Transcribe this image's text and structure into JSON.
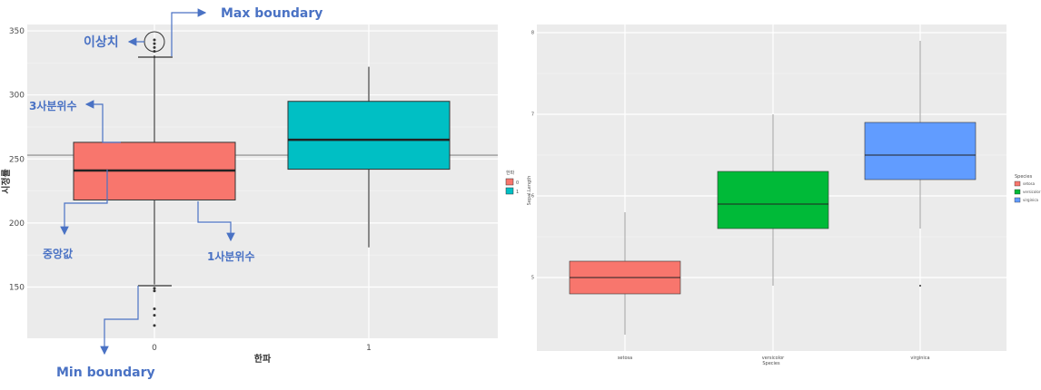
{
  "chart_data": [
    {
      "type": "box",
      "xlabel": "한파",
      "ylabel": "시정률",
      "ylim": [
        110,
        355
      ],
      "yticks": [
        150,
        200,
        250,
        300,
        350
      ],
      "hline": 253,
      "categories": [
        "0",
        "1"
      ],
      "boxes": [
        {
          "category": "0",
          "min": 152,
          "q1": 218,
          "median": 241,
          "q3": 263,
          "max": 331,
          "outliers": [
            334,
            337,
            340,
            343,
            147,
            149,
            128,
            133,
            120
          ],
          "color": "#f8766d"
        },
        {
          "category": "1",
          "min": 181,
          "q1": 242,
          "median": 265,
          "q3": 295,
          "max": 322,
          "outliers": [],
          "color": "#00bfc4"
        }
      ],
      "legend": {
        "title": "한파",
        "items": [
          "0",
          "1"
        ]
      },
      "annotations": {
        "max": "Max boundary",
        "outlier": "이상치",
        "q3": "3사분위수",
        "median": "중앙값",
        "q1": "1사분위수",
        "min": "Min boundary"
      }
    },
    {
      "type": "box",
      "xlabel": "Species",
      "ylabel": "Sepal.Length",
      "ylim": [
        4.1,
        8.1
      ],
      "yticks": [
        5,
        6,
        7,
        8
      ],
      "yticklabels": [
        "5",
        "6",
        "7",
        "8"
      ],
      "categories": [
        "setosa",
        "versicolor",
        "virginica"
      ],
      "boxes": [
        {
          "category": "setosa",
          "min": 4.3,
          "q1": 4.8,
          "median": 5.0,
          "q3": 5.2,
          "max": 5.8,
          "outliers": [],
          "color": "#f8766d"
        },
        {
          "category": "versicolor",
          "min": 4.9,
          "q1": 5.6,
          "median": 5.9,
          "q3": 6.3,
          "max": 7.0,
          "outliers": [],
          "color": "#00ba38"
        },
        {
          "category": "virginica",
          "min": 5.6,
          "q1": 6.2,
          "median": 6.5,
          "q3": 6.9,
          "max": 7.9,
          "outliers": [
            4.9
          ],
          "color": "#619cff"
        }
      ],
      "legend": {
        "title": "Species",
        "items": [
          "setosa",
          "versicolor",
          "virginica"
        ]
      }
    }
  ]
}
